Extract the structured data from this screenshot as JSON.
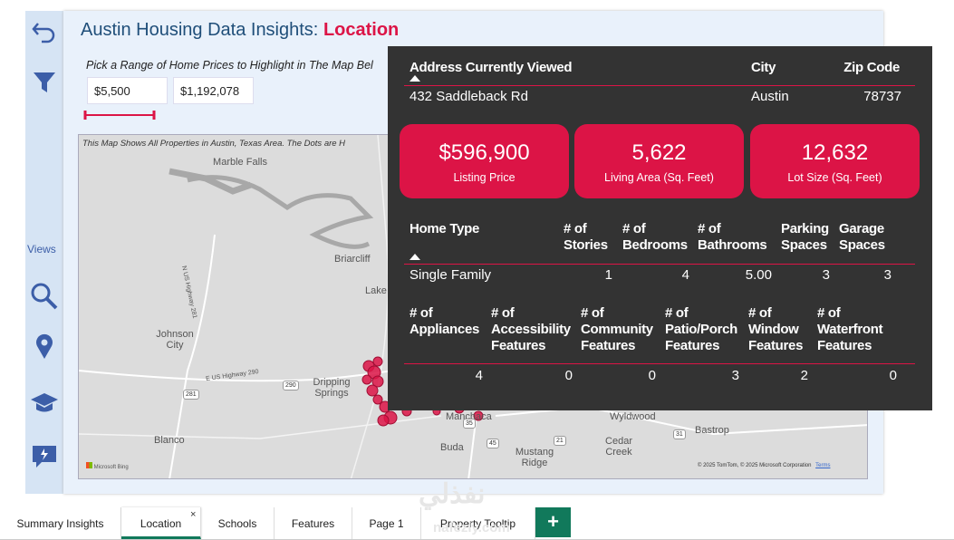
{
  "sidebar": {
    "views_label": "Views"
  },
  "header": {
    "title": "Austin Housing Data Insights:",
    "highlight": "Location"
  },
  "price_filter": {
    "prompt": "Pick a Range of Home Prices to Highlight in The Map Bel",
    "min": "$5,500",
    "max": "$1,192,078"
  },
  "map": {
    "caption": "This Map Shows All Properties in Austin, Texas Area. The Dots are H",
    "places": [
      "Marble Falls",
      "Briarcliff",
      "Lake",
      "Johnson City",
      "Dripping Springs",
      "Blanco",
      "Buda",
      "Mustang Ridge",
      "Cedar Creek",
      "Wyldwood",
      "Bastrop",
      "Manchaca"
    ],
    "roads": [
      "281",
      "290",
      "35",
      "45",
      "21",
      "31",
      "E US Highway 290",
      "N US Highway 281"
    ],
    "logo": "Microsoft Bing",
    "attribution": "© 2025 TomTom, © 2025 Microsoft Corporation",
    "terms": "Terms"
  },
  "tooltip": {
    "address_header": {
      "address": "Address Currently Viewed",
      "city": "City",
      "zip": "Zip Code"
    },
    "address_row": {
      "address": "432 Saddleback Rd",
      "city": "Austin",
      "zip": "78737"
    },
    "cards": [
      {
        "value": "$596,900",
        "label": "Listing Price"
      },
      {
        "value": "5,622",
        "label": "Living Area (Sq. Feet)"
      },
      {
        "value": "12,632",
        "label": "Lot Size (Sq. Feet)"
      }
    ],
    "home_table": {
      "headers": [
        "Home Type",
        "# of Stories",
        "# of Bedrooms",
        "# of Bathrooms",
        "Parking Spaces",
        "Garage Spaces"
      ],
      "row": [
        "Single Family",
        "1",
        "4",
        "5.00",
        "3",
        "3"
      ]
    },
    "features_table": {
      "headers": [
        "# of Appliances",
        "# of Accessibility Features",
        "# of Community Features",
        "# of Patio/Porch Features",
        "# of Window Features",
        "# of Waterfront Features"
      ],
      "row": [
        "4",
        "0",
        "0",
        "3",
        "2",
        "0"
      ]
    }
  },
  "tabs": [
    "Summary Insights",
    "Location",
    "Schools",
    "Features",
    "Page 1",
    "Property Tooltip"
  ],
  "watermark": {
    "arabic": "نفذلي",
    "site": "nafezly.com"
  }
}
